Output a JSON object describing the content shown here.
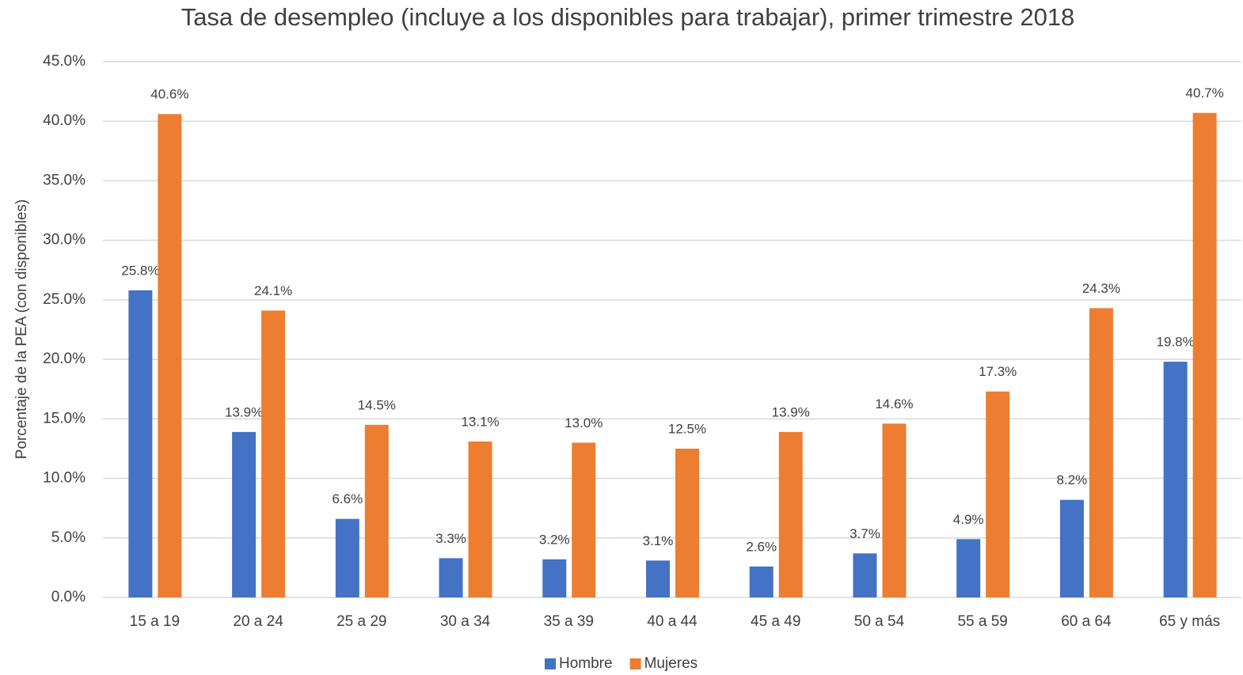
{
  "chart_data": {
    "type": "bar",
    "title": "Tasa de desempleo (incluye a los disponibles para trabajar), primer trimestre 2018",
    "y_label": "Porcentaje de la PEA (con disponibles)",
    "categories": [
      "15 a 19",
      "20 a 24",
      "25 a 29",
      "30 a 34",
      "35 a 39",
      "40 a 44",
      "45 a 49",
      "50 a 54",
      "55 a 59",
      "60 a 64",
      "65 y más"
    ],
    "series": [
      {
        "name": "Hombre",
        "color": "#4472c4",
        "values": [
          25.8,
          13.9,
          6.6,
          3.3,
          3.2,
          3.1,
          2.6,
          3.7,
          4.9,
          8.2,
          19.8
        ],
        "value_labels": [
          "25.8%",
          "13.9%",
          "6.6%",
          "3.3%",
          "3.2%",
          "3.1%",
          "2.6%",
          "3.7%",
          "4.9%",
          "8.2%",
          "19.8%"
        ]
      },
      {
        "name": "Mujeres",
        "color": "#ed7d31",
        "values": [
          40.6,
          24.1,
          14.5,
          13.1,
          13.0,
          12.5,
          13.9,
          14.6,
          17.3,
          24.3,
          40.7
        ],
        "value_labels": [
          "40.6%",
          "24.1%",
          "14.5%",
          "13.1%",
          "13.0%",
          "12.5%",
          "13.9%",
          "14.6%",
          "17.3%",
          "24.3%",
          "40.7%"
        ]
      }
    ],
    "ylim": [
      0,
      45
    ],
    "yticks": [
      {
        "value": 0,
        "label": "0.0%"
      },
      {
        "value": 5,
        "label": "5.0%"
      },
      {
        "value": 10,
        "label": "10.0%"
      },
      {
        "value": 15,
        "label": "15.0%"
      },
      {
        "value": 20,
        "label": "20.0%"
      },
      {
        "value": 25,
        "label": "25.0%"
      },
      {
        "value": 30,
        "label": "30.0%"
      },
      {
        "value": 35,
        "label": "35.0%"
      },
      {
        "value": 40,
        "label": "40.0%"
      },
      {
        "value": 45,
        "label": "45.0%"
      }
    ],
    "grid": true,
    "legend": "bottom"
  }
}
